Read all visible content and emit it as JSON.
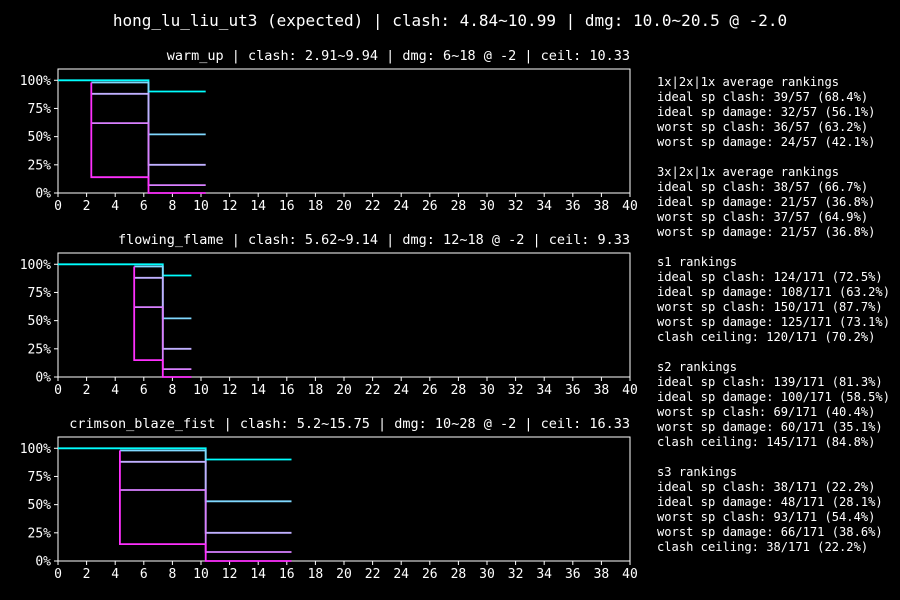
{
  "title": "hong_lu_liu_ut3 (expected) | clash: 4.84~10.99 | dmg: 10.0~20.5 @ -2.0",
  "colors": {
    "background": "#000000",
    "text": "#ffffff",
    "series": [
      "#00ffff",
      "#80d8ff",
      "#c0b0ff",
      "#d880ff",
      "#ff30ff"
    ]
  },
  "chart_data": [
    {
      "type": "line",
      "title": "warm_up | clash: 2.91~9.94 | dmg: 6~18 @ -2 | ceil: 10.33",
      "xlim": [
        0,
        40
      ],
      "ylim": [
        0,
        1.1
      ],
      "xticks": [
        "0",
        "2",
        "4",
        "6",
        "8",
        "10",
        "12",
        "14",
        "16",
        "18",
        "20",
        "22",
        "24",
        "26",
        "28",
        "30",
        "32",
        "34",
        "36",
        "38",
        "40"
      ],
      "yticks": [
        "0%",
        "25%",
        "50%",
        "75%",
        "100%"
      ],
      "series": [
        {
          "color": "#00ffff",
          "points": [
            [
              0,
              1.0
            ],
            [
              6.33,
              1.0
            ],
            [
              6.33,
              0.9
            ],
            [
              10.33,
              0.9
            ]
          ]
        },
        {
          "color": "#80d8ff",
          "points": [
            [
              2.33,
              0.98
            ],
            [
              6.33,
              0.98
            ],
            [
              6.33,
              0.52
            ],
            [
              10.33,
              0.52
            ]
          ]
        },
        {
          "color": "#c0b0ff",
          "points": [
            [
              2.33,
              0.88
            ],
            [
              6.33,
              0.88
            ],
            [
              6.33,
              0.25
            ],
            [
              10.33,
              0.25
            ]
          ]
        },
        {
          "color": "#d880ff",
          "points": [
            [
              2.33,
              0.62
            ],
            [
              6.33,
              0.62
            ],
            [
              6.33,
              0.07
            ],
            [
              10.33,
              0.07
            ]
          ]
        },
        {
          "color": "#ff30ff",
          "points": [
            [
              2.33,
              0.98
            ],
            [
              2.33,
              0.14
            ],
            [
              6.33,
              0.14
            ],
            [
              6.33,
              0.0
            ],
            [
              10.33,
              0.0
            ]
          ]
        }
      ]
    },
    {
      "type": "line",
      "title": "flowing_flame | clash: 5.62~9.14 | dmg: 12~18 @ -2 | ceil: 9.33",
      "xlim": [
        0,
        40
      ],
      "ylim": [
        0,
        1.1
      ],
      "xticks": [
        "0",
        "2",
        "4",
        "6",
        "8",
        "10",
        "12",
        "14",
        "16",
        "18",
        "20",
        "22",
        "24",
        "26",
        "28",
        "30",
        "32",
        "34",
        "36",
        "38",
        "40"
      ],
      "yticks": [
        "0%",
        "25%",
        "50%",
        "75%",
        "100%"
      ],
      "series": [
        {
          "color": "#00ffff",
          "points": [
            [
              0,
              1.0
            ],
            [
              7.33,
              1.0
            ],
            [
              7.33,
              0.9
            ],
            [
              9.33,
              0.9
            ]
          ]
        },
        {
          "color": "#80d8ff",
          "points": [
            [
              5.33,
              0.98
            ],
            [
              7.33,
              0.98
            ],
            [
              7.33,
              0.52
            ],
            [
              9.33,
              0.52
            ]
          ]
        },
        {
          "color": "#c0b0ff",
          "points": [
            [
              5.33,
              0.88
            ],
            [
              7.33,
              0.88
            ],
            [
              7.33,
              0.25
            ],
            [
              9.33,
              0.25
            ]
          ]
        },
        {
          "color": "#d880ff",
          "points": [
            [
              5.33,
              0.62
            ],
            [
              7.33,
              0.62
            ],
            [
              7.33,
              0.07
            ],
            [
              9.33,
              0.07
            ]
          ]
        },
        {
          "color": "#ff30ff",
          "points": [
            [
              5.33,
              0.98
            ],
            [
              5.33,
              0.15
            ],
            [
              7.33,
              0.15
            ],
            [
              7.33,
              0.0
            ],
            [
              9.33,
              0.0
            ]
          ]
        }
      ]
    },
    {
      "type": "line",
      "title": "crimson_blaze_fist | clash: 5.2~15.75 | dmg: 10~28 @ -2 | ceil: 16.33",
      "xlim": [
        0,
        40
      ],
      "ylim": [
        0,
        1.1
      ],
      "xticks": [
        "0",
        "2",
        "4",
        "6",
        "8",
        "10",
        "12",
        "14",
        "16",
        "18",
        "20",
        "22",
        "24",
        "26",
        "28",
        "30",
        "32",
        "34",
        "36",
        "38",
        "40"
      ],
      "yticks": [
        "0%",
        "25%",
        "50%",
        "75%",
        "100%"
      ],
      "series": [
        {
          "color": "#00ffff",
          "points": [
            [
              0,
              1.0
            ],
            [
              10.33,
              1.0
            ],
            [
              10.33,
              0.9
            ],
            [
              16.33,
              0.9
            ]
          ]
        },
        {
          "color": "#80d8ff",
          "points": [
            [
              4.33,
              0.98
            ],
            [
              10.33,
              0.98
            ],
            [
              10.33,
              0.53
            ],
            [
              16.33,
              0.53
            ]
          ]
        },
        {
          "color": "#c0b0ff",
          "points": [
            [
              4.33,
              0.88
            ],
            [
              10.33,
              0.88
            ],
            [
              10.33,
              0.25
            ],
            [
              16.33,
              0.25
            ]
          ]
        },
        {
          "color": "#d880ff",
          "points": [
            [
              4.33,
              0.63
            ],
            [
              10.33,
              0.63
            ],
            [
              10.33,
              0.08
            ],
            [
              16.33,
              0.08
            ]
          ]
        },
        {
          "color": "#ff30ff",
          "points": [
            [
              4.33,
              0.98
            ],
            [
              4.33,
              0.15
            ],
            [
              10.33,
              0.15
            ],
            [
              10.33,
              0.0
            ],
            [
              16.33,
              0.0
            ]
          ]
        }
      ]
    }
  ],
  "sidebar": [
    [
      "1x|2x|1x average rankings",
      "ideal sp clash: 39/57 (68.4%)",
      "ideal sp damage: 32/57 (56.1%)",
      "worst sp clash: 36/57 (63.2%)",
      "worst sp damage: 24/57 (42.1%)"
    ],
    [
      "3x|2x|1x average rankings",
      "ideal sp clash: 38/57 (66.7%)",
      "ideal sp damage: 21/57 (36.8%)",
      "worst sp clash: 37/57 (64.9%)",
      "worst sp damage: 21/57 (36.8%)"
    ],
    [
      "s1 rankings",
      "ideal sp clash: 124/171 (72.5%)",
      "ideal sp damage: 108/171 (63.2%)",
      "worst sp clash: 150/171 (87.7%)",
      "worst sp damage: 125/171 (73.1%)",
      "clash ceiling: 120/171 (70.2%)"
    ],
    [
      "s2 rankings",
      "ideal sp clash: 139/171 (81.3%)",
      "ideal sp damage: 100/171 (58.5%)",
      "worst sp clash: 69/171 (40.4%)",
      "worst sp damage: 60/171 (35.1%)",
      "clash ceiling: 145/171 (84.8%)"
    ],
    [
      "s3 rankings",
      "ideal sp clash: 38/171 (22.2%)",
      "ideal sp damage: 48/171 (28.1%)",
      "worst sp clash: 93/171 (54.4%)",
      "worst sp damage: 66/171 (38.6%)",
      "clash ceiling: 38/171 (22.2%)"
    ]
  ]
}
